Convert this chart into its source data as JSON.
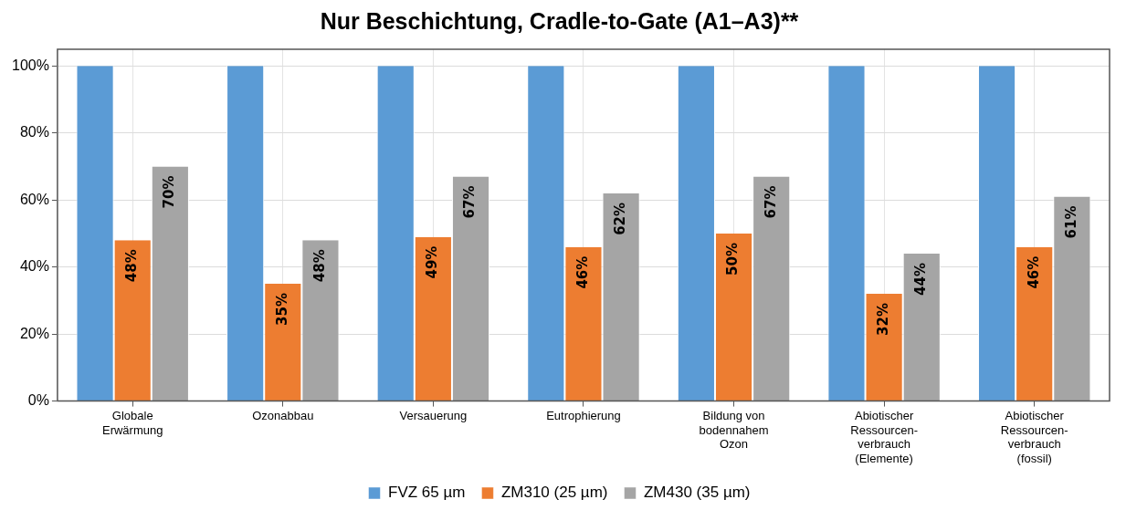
{
  "chart_data": {
    "type": "bar",
    "title": "Nur Beschichtung, Cradle-to-Gate (A1–A3)**",
    "categories": [
      "Globale\nErwärmung",
      "Ozonabbau",
      "Versauerung",
      "Eutrophierung",
      "Bildung von\nbodennahem\nOzon",
      "Abiotischer\nRessourcen-\nverbrauch\n(Elemente)",
      "Abiotischer\nRessourcen-\nverbrauch\n(fossil)"
    ],
    "series": [
      {
        "name": "FVZ 65 µm",
        "color": "#5b9bd5",
        "values": [
          100,
          100,
          100,
          100,
          100,
          100,
          100
        ]
      },
      {
        "name": "ZM310 (25 µm)",
        "color": "#ed7d31",
        "values": [
          48,
          35,
          49,
          46,
          50,
          32,
          46
        ],
        "value_labels": [
          "48%",
          "35%",
          "49%",
          "46%",
          "50%",
          "32%",
          "46%"
        ]
      },
      {
        "name": "ZM430 (35 µm)",
        "color": "#a5a5a5",
        "values": [
          70,
          48,
          67,
          62,
          67,
          44,
          61
        ],
        "value_labels": [
          "70%",
          "48%",
          "67%",
          "62%",
          "67%",
          "44%",
          "61%"
        ]
      }
    ],
    "ylim": [
      0,
      105
    ],
    "yticks": [
      {
        "value": 0,
        "label": "0%"
      },
      {
        "value": 20,
        "label": "20%"
      },
      {
        "value": 40,
        "label": "40%"
      },
      {
        "value": 60,
        "label": "60%"
      },
      {
        "value": 80,
        "label": "80%"
      },
      {
        "value": 100,
        "label": "100%"
      }
    ],
    "grid": true,
    "legend": "bottom"
  }
}
